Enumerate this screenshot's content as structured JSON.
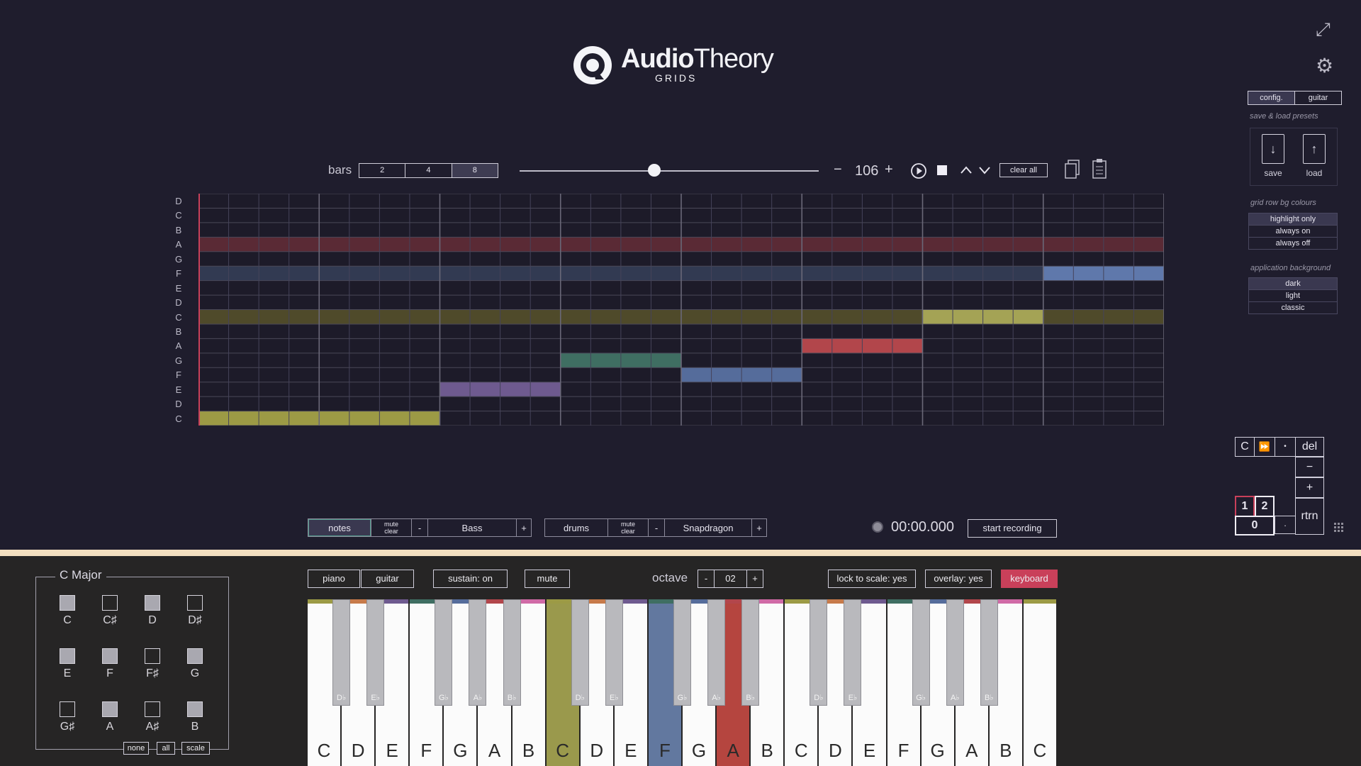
{
  "app": {
    "brand_bold": "Audio",
    "brand_light": "Theory",
    "brand_sub": "GRIDS"
  },
  "right_panel": {
    "tabs": [
      "config.",
      "guitar"
    ],
    "save_load_label": "save & load presets",
    "save_label": "save",
    "load_label": "load",
    "grid_row_label": "grid row bg colours",
    "grid_row_options": [
      "highlight only",
      "always on",
      "always off"
    ],
    "app_bg_label": "application background",
    "app_bg_options": [
      "dark",
      "light",
      "classic"
    ]
  },
  "toolbar": {
    "bars_label": "bars",
    "bars_options": [
      "2",
      "4",
      "8"
    ],
    "bars_selected": "8",
    "tempo": "106",
    "minus": "−",
    "plus": "+",
    "clear_all": "clear all",
    "tempo_slider_fraction": 0.45
  },
  "grid": {
    "row_labels": [
      "D",
      "C",
      "B",
      "A",
      "G",
      "F",
      "E",
      "D",
      "C",
      "B",
      "A",
      "G",
      "F",
      "E",
      "D",
      "C"
    ],
    "highlight_rows": [
      {
        "row": 3,
        "color": "#5a2a35"
      },
      {
        "row": 5,
        "color": "#323a52"
      },
      {
        "row": 8,
        "color": "#4f4a2a"
      }
    ],
    "notes": [
      {
        "row": 15,
        "start": 0,
        "len": 8,
        "color": "#9c9a45"
      },
      {
        "row": 13,
        "start": 8,
        "len": 4,
        "color": "#6e5a8f"
      },
      {
        "row": 11,
        "start": 12,
        "len": 4,
        "color": "#3f6e62"
      },
      {
        "row": 12,
        "start": 16,
        "len": 4,
        "color": "#556c9b"
      },
      {
        "row": 10,
        "start": 20,
        "len": 4,
        "color": "#b2464b"
      },
      {
        "row": 8,
        "start": 24,
        "len": 4,
        "color": "#a4a355"
      },
      {
        "row": 5,
        "start": 28,
        "len": 4,
        "color": "#5f78ab"
      }
    ],
    "columns": 32
  },
  "tracks": {
    "notes": {
      "label": "notes",
      "mute": "mute",
      "clear": "clear",
      "minus": "-",
      "instrument": "Bass",
      "plus": "+"
    },
    "drums": {
      "label": "drums",
      "mute": "mute",
      "clear": "clear",
      "minus": "-",
      "instrument": "Snapdragon",
      "plus": "+"
    }
  },
  "recording": {
    "time": "00:00.000",
    "button": "start recording"
  },
  "numpad": {
    "c": "C",
    "ff": "⏩",
    "dot_top": "•",
    "del": "del",
    "minus": "−",
    "plus": "+",
    "one": "1",
    "two": "2",
    "zero": "0",
    "dot": ".",
    "rtrn": "rtrn"
  },
  "scale": {
    "title": "C Major",
    "notes": [
      {
        "name": "C",
        "on": true
      },
      {
        "name": "C♯",
        "on": false
      },
      {
        "name": "D",
        "on": true
      },
      {
        "name": "D♯",
        "on": false
      },
      {
        "name": "E",
        "on": true
      },
      {
        "name": "F",
        "on": true
      },
      {
        "name": "F♯",
        "on": false
      },
      {
        "name": "G",
        "on": true
      },
      {
        "name": "G♯",
        "on": false
      },
      {
        "name": "A",
        "on": true
      },
      {
        "name": "A♯",
        "on": false
      },
      {
        "name": "B",
        "on": true
      }
    ],
    "buttons": [
      "none",
      "all",
      "scale"
    ]
  },
  "bottom_bar": {
    "piano": "piano",
    "guitar": "guitar",
    "sustain": "sustain: on",
    "mute": "mute",
    "octave_label": "octave",
    "octave_minus": "-",
    "octave_value": "02",
    "octave_plus": "+",
    "lock": "lock to scale: yes",
    "overlay": "overlay: yes",
    "keyboard": "keyboard"
  },
  "keyboard": {
    "white_keys": [
      "C",
      "D",
      "E",
      "F",
      "G",
      "A",
      "B",
      "C",
      "D",
      "E",
      "F",
      "G",
      "A",
      "B",
      "C",
      "D",
      "E",
      "F",
      "G",
      "A",
      "B",
      "C"
    ],
    "black_keys": [
      "D♭",
      "E♭",
      "G♭",
      "A♭",
      "B♭",
      "D♭",
      "E♭",
      "G♭",
      "A♭",
      "B♭",
      "D♭",
      "E♭",
      "G♭",
      "A♭",
      "B♭"
    ],
    "active_whites": [
      {
        "index": 7,
        "color": "#9a994c"
      },
      {
        "index": 10,
        "color": "#62789f"
      },
      {
        "index": 12,
        "color": "#b5453f"
      }
    ],
    "top_colors": [
      "#9c9a45",
      "#c77a4a",
      "#6e5a8f",
      "#3f6e62",
      "#556c9b",
      "#b2464b",
      "#d06aa6"
    ]
  }
}
